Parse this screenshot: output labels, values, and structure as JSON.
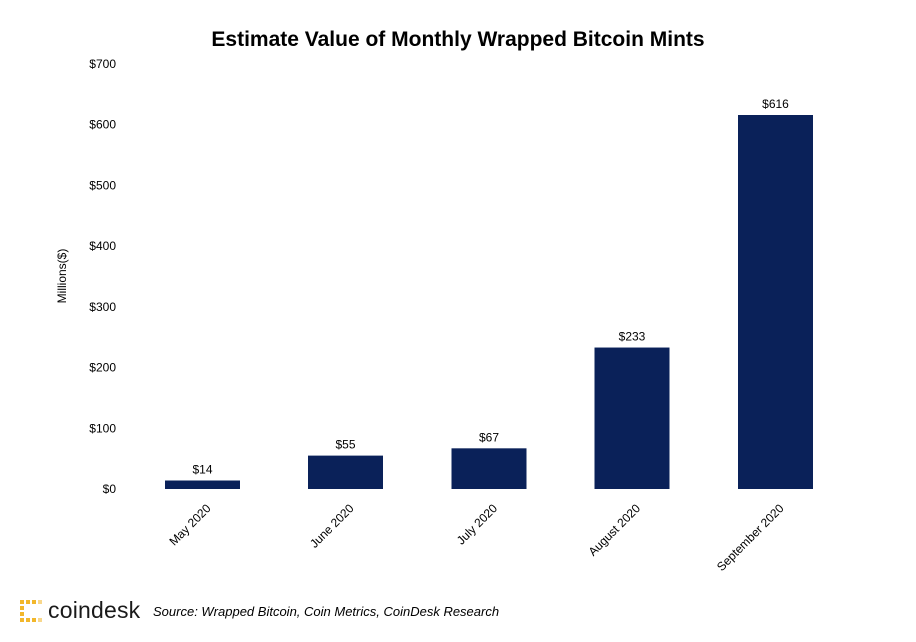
{
  "chart_data": {
    "type": "bar",
    "title": "Estimate Value of Monthly Wrapped Bitcoin Mints",
    "ylabel": "Millions($)",
    "xlabel": "",
    "categories": [
      "May 2020",
      "June 2020",
      "July 2020",
      "August 2020",
      "September 2020"
    ],
    "values": [
      14,
      55,
      67,
      233,
      616
    ],
    "data_labels": [
      "$14",
      "$55",
      "$67",
      "$233",
      "$616"
    ],
    "ylim": [
      0,
      700
    ],
    "yticks": [
      0,
      100,
      200,
      300,
      400,
      500,
      600,
      700
    ],
    "ytick_labels": [
      "$0",
      "$100",
      "$200",
      "$300",
      "$400",
      "$500",
      "$600",
      "$700"
    ],
    "bar_color": "#0a2159",
    "grid": false,
    "legend": "none"
  },
  "footer": {
    "logo_text": "coindesk",
    "logo_color": "#f2b72b",
    "source": "Source: Wrapped Bitcoin, Coin Metrics, CoinDesk Research"
  }
}
